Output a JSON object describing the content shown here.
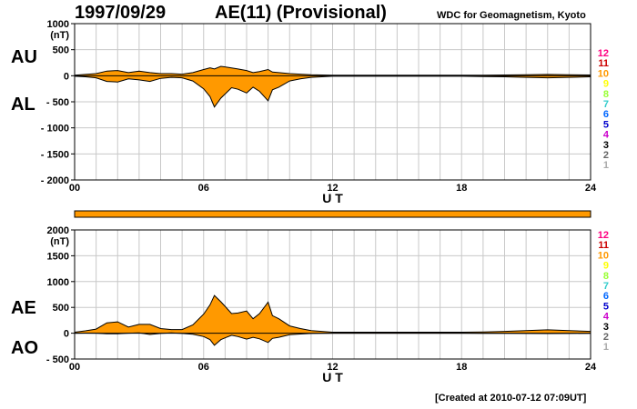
{
  "header": {
    "date": "1997/09/29",
    "title": "AE(11) (Provisional)",
    "source": "WDC for Geomagnetism, Kyoto"
  },
  "footer": {
    "created": "[Created at 2010-07-12 07:09UT]"
  },
  "colors": {
    "fill": "#ff9900",
    "grid": "#c8c8c8",
    "line": "#000000"
  },
  "station_legend": {
    "labels": [
      "12",
      "11",
      "10",
      "9",
      "8",
      "7",
      "6",
      "5",
      "4",
      "3",
      "2",
      "1"
    ],
    "colors": [
      "#ff0080",
      "#cc0000",
      "#ff9900",
      "#ffff00",
      "#99ff33",
      "#33cccc",
      "#0066ff",
      "#0000cc",
      "#cc00cc",
      "#000000",
      "#666666",
      "#aaaaaa"
    ]
  },
  "chart_data": [
    {
      "type": "area",
      "panel": "AU/AL",
      "side_labels": [
        "AU",
        "AL"
      ],
      "unit": "(nT)",
      "xlabel": "U T",
      "xlim": [
        0,
        24
      ],
      "xticks": [
        "00",
        "06",
        "12",
        "18",
        "24"
      ],
      "ylim": [
        -2000,
        1000
      ],
      "yticks": [
        "1000",
        "500",
        "0",
        "- 500",
        "- 1000",
        "- 1500",
        "- 2000"
      ],
      "grid": true,
      "series": [
        {
          "name": "AU",
          "x": [
            0,
            0.5,
            1,
            1.5,
            2,
            2.5,
            3,
            3.5,
            4,
            4.5,
            5,
            5.5,
            6,
            6.3,
            6.5,
            6.8,
            7,
            7.3,
            7.6,
            8,
            8.3,
            8.6,
            9,
            9.2,
            9.5,
            10,
            10.5,
            11,
            11.5,
            12,
            13,
            14,
            15,
            16,
            17,
            18,
            19,
            20,
            21,
            22,
            23,
            24
          ],
          "values": [
            10,
            25,
            40,
            90,
            100,
            60,
            90,
            60,
            40,
            40,
            30,
            60,
            120,
            150,
            130,
            180,
            170,
            150,
            130,
            100,
            60,
            80,
            120,
            70,
            60,
            40,
            30,
            20,
            15,
            10,
            10,
            10,
            10,
            10,
            10,
            10,
            10,
            15,
            20,
            25,
            20,
            15
          ]
        },
        {
          "name": "AL",
          "x": [
            0,
            0.5,
            1,
            1.5,
            2,
            2.5,
            3,
            3.5,
            4,
            4.5,
            5,
            5.5,
            6,
            6.3,
            6.5,
            6.8,
            7,
            7.3,
            7.6,
            8,
            8.3,
            8.6,
            9,
            9.2,
            9.5,
            10,
            10.5,
            11,
            11.5,
            12,
            13,
            14,
            15,
            16,
            17,
            18,
            19,
            20,
            21,
            22,
            23,
            24
          ],
          "values": [
            -10,
            -20,
            -40,
            -110,
            -120,
            -60,
            -80,
            -110,
            -50,
            -30,
            -40,
            -100,
            -250,
            -400,
            -600,
            -430,
            -350,
            -230,
            -260,
            -330,
            -220,
            -300,
            -480,
            -270,
            -220,
            -100,
            -60,
            -30,
            -20,
            -10,
            -10,
            -10,
            -10,
            -10,
            -10,
            -10,
            -15,
            -20,
            -30,
            -40,
            -30,
            -20
          ]
        }
      ]
    },
    {
      "type": "area",
      "panel": "AE/AO",
      "side_labels": [
        "AE",
        "AO"
      ],
      "unit": "(nT)",
      "xlabel": "U T",
      "xlim": [
        0,
        24
      ],
      "xticks": [
        "00",
        "06",
        "12",
        "18",
        "24"
      ],
      "ylim": [
        -500,
        2000
      ],
      "yticks": [
        "2000",
        "1500",
        "1000",
        "500",
        "0",
        "- 500"
      ],
      "grid": true,
      "series": [
        {
          "name": "AE",
          "x": [
            0,
            0.5,
            1,
            1.5,
            2,
            2.5,
            3,
            3.5,
            4,
            4.5,
            5,
            5.5,
            6,
            6.3,
            6.5,
            6.8,
            7,
            7.3,
            7.6,
            8,
            8.3,
            8.6,
            9,
            9.2,
            9.5,
            10,
            10.5,
            11,
            11.5,
            12,
            13,
            14,
            15,
            16,
            17,
            18,
            19,
            20,
            21,
            22,
            23,
            24
          ],
          "values": [
            20,
            45,
            80,
            200,
            220,
            120,
            170,
            170,
            90,
            70,
            70,
            160,
            370,
            550,
            730,
            610,
            520,
            380,
            390,
            430,
            280,
            380,
            600,
            340,
            280,
            140,
            90,
            50,
            35,
            20,
            20,
            20,
            20,
            20,
            20,
            20,
            25,
            35,
            50,
            65,
            50,
            35
          ]
        },
        {
          "name": "AO",
          "x": [
            0,
            0.5,
            1,
            1.5,
            2,
            2.5,
            3,
            3.5,
            4,
            4.5,
            5,
            5.5,
            6,
            6.3,
            6.5,
            6.8,
            7,
            7.3,
            7.6,
            8,
            8.3,
            8.6,
            9,
            9.2,
            9.5,
            10,
            10.5,
            11,
            11.5,
            12,
            13,
            14,
            15,
            16,
            17,
            18,
            19,
            20,
            21,
            22,
            23,
            24
          ],
          "values": [
            0,
            2,
            0,
            -10,
            -10,
            0,
            5,
            -25,
            -5,
            5,
            -5,
            -20,
            -65,
            -125,
            -235,
            -125,
            -90,
            -40,
            -65,
            -115,
            -80,
            -110,
            -180,
            -100,
            -80,
            -30,
            -15,
            -5,
            -2,
            0,
            0,
            0,
            0,
            0,
            0,
            0,
            -2,
            -2,
            -5,
            -7,
            -5,
            -2
          ]
        }
      ]
    }
  ]
}
